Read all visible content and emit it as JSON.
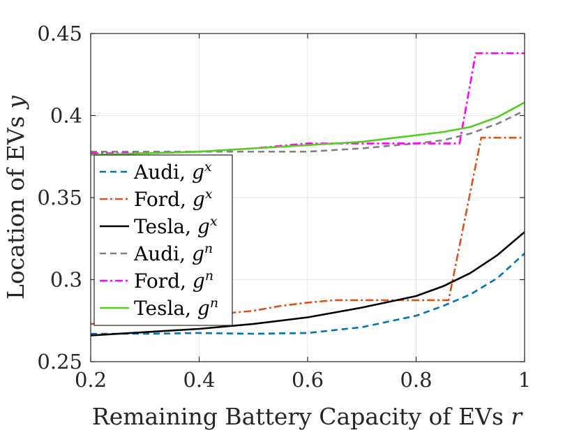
{
  "chart_data": {
    "type": "line",
    "xlabel": {
      "text": "Remaining Battery Capacity of EVs ",
      "var": "r"
    },
    "ylabel": {
      "text": "Location of EVs ",
      "var": "y"
    },
    "xlim": [
      0.2,
      1.0
    ],
    "ylim": [
      0.25,
      0.45
    ],
    "xticks": [
      0.2,
      0.4,
      0.6,
      0.8,
      1.0
    ],
    "xtick_labels": [
      "0.2",
      "0.4",
      "0.6",
      "0.8",
      "1"
    ],
    "yticks": [
      0.25,
      0.3,
      0.35,
      0.4,
      0.45
    ],
    "ytick_labels": [
      "0.25",
      "0.3",
      "0.35",
      "0.4",
      "0.45"
    ],
    "grid": true,
    "legend_position": "left-middle",
    "series": [
      {
        "name": "Audi, ",
        "sup": "x",
        "color": "#0072BD",
        "dash": "dashed",
        "x": [
          0.2,
          0.3,
          0.4,
          0.5,
          0.6,
          0.7,
          0.8,
          0.85,
          0.9,
          0.95,
          1.0
        ],
        "y": [
          0.267,
          0.267,
          0.2675,
          0.267,
          0.2675,
          0.271,
          0.278,
          0.284,
          0.291,
          0.301,
          0.316
        ]
      },
      {
        "name": "Ford, ",
        "sup": "x",
        "color": "#D95319",
        "dash": "dashdot",
        "x": [
          0.2,
          0.3,
          0.4,
          0.5,
          0.55,
          0.6,
          0.65,
          0.7,
          0.75,
          0.8,
          0.86,
          0.92,
          1.0
        ],
        "y": [
          0.273,
          0.275,
          0.278,
          0.281,
          0.284,
          0.286,
          0.2875,
          0.2875,
          0.2875,
          0.2875,
          0.2875,
          0.3865,
          0.3865
        ]
      },
      {
        "name": "Tesla, ",
        "sup": "x",
        "color": "#000000",
        "dash": "solid",
        "x": [
          0.2,
          0.3,
          0.4,
          0.5,
          0.6,
          0.7,
          0.8,
          0.85,
          0.9,
          0.95,
          1.0
        ],
        "y": [
          0.266,
          0.268,
          0.27,
          0.273,
          0.277,
          0.283,
          0.29,
          0.296,
          0.304,
          0.315,
          0.329
        ]
      },
      {
        "name": "Audi, ",
        "sup": "n",
        "color": "#808080",
        "dash": "dashed",
        "x": [
          0.2,
          0.3,
          0.4,
          0.5,
          0.6,
          0.7,
          0.8,
          0.85,
          0.9,
          0.95,
          1.0
        ],
        "y": [
          0.378,
          0.378,
          0.378,
          0.378,
          0.378,
          0.38,
          0.383,
          0.385,
          0.389,
          0.395,
          0.403
        ]
      },
      {
        "name": "Ford, ",
        "sup": "n",
        "color": "#FF00FF",
        "dash": "dashdot",
        "x": [
          0.2,
          0.3,
          0.4,
          0.5,
          0.6,
          0.7,
          0.8,
          0.88,
          0.91,
          1.0
        ],
        "y": [
          0.377,
          0.377,
          0.378,
          0.38,
          0.383,
          0.383,
          0.383,
          0.383,
          0.438,
          0.438
        ]
      },
      {
        "name": "Tesla, ",
        "sup": "n",
        "color": "#55CC22",
        "dash": "solid",
        "x": [
          0.2,
          0.3,
          0.4,
          0.5,
          0.6,
          0.7,
          0.8,
          0.85,
          0.9,
          0.95,
          1.0
        ],
        "y": [
          0.376,
          0.377,
          0.378,
          0.38,
          0.382,
          0.384,
          0.388,
          0.39,
          0.393,
          0.399,
          0.408
        ]
      }
    ]
  }
}
